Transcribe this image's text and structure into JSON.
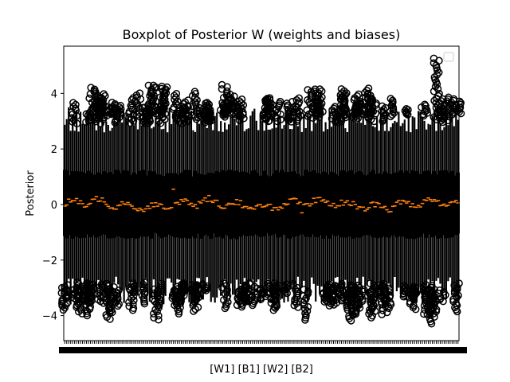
{
  "chart_data": {
    "type": "boxplot",
    "title": "Boxplot of Posterior W (weights and biases)",
    "xlabel": "[W1] [B1] [W2] [B2]",
    "ylabel": "Posterior",
    "ylim": [
      -4.9,
      5.7
    ],
    "yticks": [
      -4,
      -2,
      0,
      2,
      4
    ],
    "grid": false,
    "legend": "top-right, empty",
    "box_count": 200,
    "typical_box": {
      "whisker_low": -2.6,
      "q1": -1.0,
      "median": 0.0,
      "q3": 1.0,
      "whisker_high": 2.6
    },
    "median_range": [
      -0.3,
      0.55
    ],
    "outlier_max": 5.2,
    "outlier_min": -4.3,
    "box_color": "#000000",
    "median_color": "#ff7f0e",
    "flier_marker": "open circle"
  }
}
